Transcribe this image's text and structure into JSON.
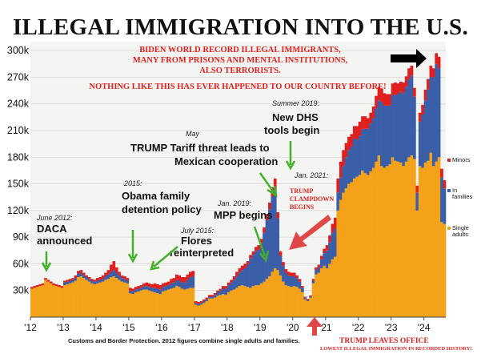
{
  "title": "ILLEGAL IMMIGRATION INTO THE U.S.",
  "notes": {
    "biden_1": "BIDEN WORLD RECORD ILLEGAL IMMIGRANTS,",
    "biden_2": "MANY FROM PRISONS AND MENTAL INSTITUTIONS,",
    "biden_3": "ALSO TERRORISTS.",
    "nothing": "NOTHING LIKE THIS HAS EVER HAPPENED TO OUR COUNTRY BEFORE!",
    "clampdown_1": "TRUMP",
    "clampdown_2": "CLAMPDOWN",
    "clampdown_3": "BEGINS",
    "leaves_1": "TRUMP LEAVES OFFICE",
    "leaves_2": "LOWEST ILLEGAL IMMIGRATION IN RECORDED HISTORY!",
    "source": "Customs and Border Protection. 2012 figures combine single adults and families."
  },
  "annotations": {
    "daca_date": "June 2012:",
    "daca_1": "DACA",
    "daca_2": "announced",
    "obama_date": "2015:",
    "obama_1": "Obama family",
    "obama_2": "detention policy",
    "flores_date": "July 2015:",
    "flores_1": "Flores",
    "flores_2": "reinterpreted",
    "tariff_date": "May",
    "tariff_1": "TRUMP Tariff threat leads to",
    "tariff_2": "Mexican cooperation",
    "mpp_date": "Jan. 2019:",
    "mpp_1": "MPP begins",
    "dhs_date": "Summer 2019:",
    "dhs_1": "New DHS",
    "dhs_2": "tools begin",
    "jan2021": "Jan. 2021:"
  },
  "chart_data": {
    "type": "bar",
    "stacked": true,
    "x_start": "2012-01",
    "x_end": "2024-02",
    "frequency": "monthly",
    "ylim": [
      0,
      310000
    ],
    "yticks": [
      "30k",
      "60k",
      "90k",
      "120k",
      "150k",
      "180k",
      "210k",
      "240k",
      "270k",
      "300k"
    ],
    "xticks": [
      "'12",
      "'13",
      "'14",
      "'15",
      "'16",
      "'17",
      "'18",
      "'19",
      "'20",
      "'21",
      "'22",
      "'23",
      "'24"
    ],
    "colors": {
      "single_adults": "#f5a21b",
      "families": "#3a5fa8",
      "minors": "#e0201e"
    },
    "legend": [
      "Minors",
      "In families",
      "Single adults"
    ],
    "series": [
      {
        "name": "Single adults",
        "values": [
          32000,
          33000,
          34000,
          35000,
          36000,
          42000,
          40000,
          38000,
          36000,
          35000,
          34000,
          33000,
          36000,
          37000,
          38000,
          39000,
          41000,
          45000,
          46000,
          44000,
          42000,
          40000,
          38000,
          37000,
          38000,
          39000,
          40000,
          42000,
          43000,
          45000,
          46000,
          44000,
          42000,
          40000,
          39000,
          38000,
          27000,
          26000,
          28000,
          29000,
          30000,
          31000,
          31000,
          30000,
          29000,
          28000,
          27000,
          26000,
          29000,
          30000,
          31000,
          32000,
          33000,
          35000,
          34000,
          32000,
          31000,
          32000,
          33000,
          33000,
          14000,
          13000,
          14000,
          16000,
          18000,
          21000,
          21000,
          22000,
          24000,
          25000,
          26000,
          25000,
          28000,
          30000,
          31000,
          33000,
          35000,
          36000,
          35000,
          34000,
          33000,
          35000,
          36000,
          36000,
          38000,
          40000,
          43000,
          46000,
          51000,
          55000,
          53000,
          47000,
          40000,
          36000,
          35000,
          34000,
          35000,
          34000,
          32000,
          28000,
          20000,
          18000,
          22000,
          38000,
          48000,
          50000,
          55000,
          58000,
          55000,
          60000,
          65000,
          68000,
          120000,
          132000,
          140000,
          145000,
          150000,
          152000,
          156000,
          158000,
          160000,
          165000,
          162000,
          160000,
          164000,
          168000,
          175000,
          182000,
          170000,
          168000,
          170000,
          172000,
          180000,
          176000,
          175000,
          174000,
          170000,
          175000,
          180000,
          182000,
          178000,
          120000,
          170000,
          168000,
          174000,
          176000,
          185000,
          170000,
          175000,
          180000,
          107000,
          105000
        ]
      },
      {
        "name": "In families",
        "values": [
          0,
          0,
          0,
          0,
          0,
          0,
          0,
          0,
          0,
          0,
          0,
          0,
          3000,
          3000,
          3000,
          3000,
          3000,
          4000,
          4000,
          3000,
          3000,
          3000,
          3000,
          3000,
          3000,
          3000,
          3000,
          4000,
          5000,
          6000,
          7000,
          6000,
          5000,
          4000,
          4000,
          3000,
          3000,
          3000,
          3000,
          3000,
          3000,
          4000,
          4000,
          4000,
          4000,
          5000,
          5000,
          5000,
          5000,
          5000,
          5000,
          6000,
          6000,
          7000,
          7000,
          7000,
          8000,
          10000,
          12000,
          13000,
          2000,
          2000,
          2000,
          2000,
          2000,
          2000,
          2000,
          3000,
          4000,
          5000,
          6000,
          7000,
          8000,
          9000,
          11000,
          13000,
          15000,
          17000,
          20000,
          25000,
          33000,
          35000,
          38000,
          40000,
          45000,
          55000,
          66000,
          75000,
          85000,
          90000,
          58000,
          22000,
          18000,
          14000,
          12000,
          12000,
          11000,
          10000,
          8000,
          5000,
          2000,
          1500,
          1500,
          3000,
          5000,
          6000,
          10000,
          14000,
          20000,
          24000,
          30000,
          32000,
          20000,
          25000,
          30000,
          35000,
          38000,
          40000,
          45000,
          42000,
          44000,
          46000,
          50000,
          52000,
          54000,
          56000,
          60000,
          62000,
          72000,
          70000,
          68000,
          66000,
          70000,
          74000,
          76000,
          80000,
          82000,
          84000,
          88000,
          90000,
          70000,
          20000,
          50000,
          60000,
          70000,
          80000,
          85000,
          100000,
          110000,
          100000,
          50000,
          40000
        ]
      },
      {
        "name": "Minors",
        "values": [
          2000,
          2000,
          2000,
          2000,
          2000,
          2000,
          2000,
          2000,
          2000,
          2000,
          2000,
          2000,
          2000,
          2000,
          2000,
          2000,
          3000,
          3000,
          3000,
          3000,
          2000,
          2000,
          2000,
          2000,
          3000,
          3000,
          4000,
          4000,
          5000,
          8000,
          10000,
          6000,
          4000,
          3000,
          3000,
          3000,
          3000,
          3000,
          3000,
          3000,
          3000,
          3000,
          4000,
          4000,
          4000,
          5000,
          5000,
          5000,
          4000,
          4000,
          4000,
          5000,
          5000,
          6000,
          6000,
          6000,
          6000,
          6000,
          6000,
          6000,
          2000,
          2000,
          2000,
          2000,
          2000,
          2000,
          2000,
          2000,
          2000,
          2000,
          3000,
          3000,
          3000,
          3000,
          4000,
          5000,
          5000,
          5000,
          5000,
          4000,
          4000,
          4000,
          5000,
          5000,
          5000,
          6000,
          7000,
          8000,
          10000,
          11000,
          7000,
          5000,
          4000,
          4000,
          4000,
          4000,
          4000,
          3000,
          3000,
          2000,
          1000,
          1000,
          1000,
          2000,
          3000,
          3000,
          4000,
          5000,
          6000,
          8000,
          10000,
          12000,
          16000,
          18000,
          18000,
          16000,
          15000,
          14000,
          14000,
          15000,
          16000,
          15000,
          14000,
          12000,
          12000,
          13000,
          14000,
          15000,
          15000,
          14000,
          13000,
          13000,
          13000,
          14000,
          12000,
          11000,
          12000,
          12000,
          12000,
          11000,
          10000,
          8000,
          10000,
          11000,
          12000,
          12000,
          13000,
          10000,
          12000,
          13000,
          10000,
          9000
        ]
      }
    ]
  }
}
